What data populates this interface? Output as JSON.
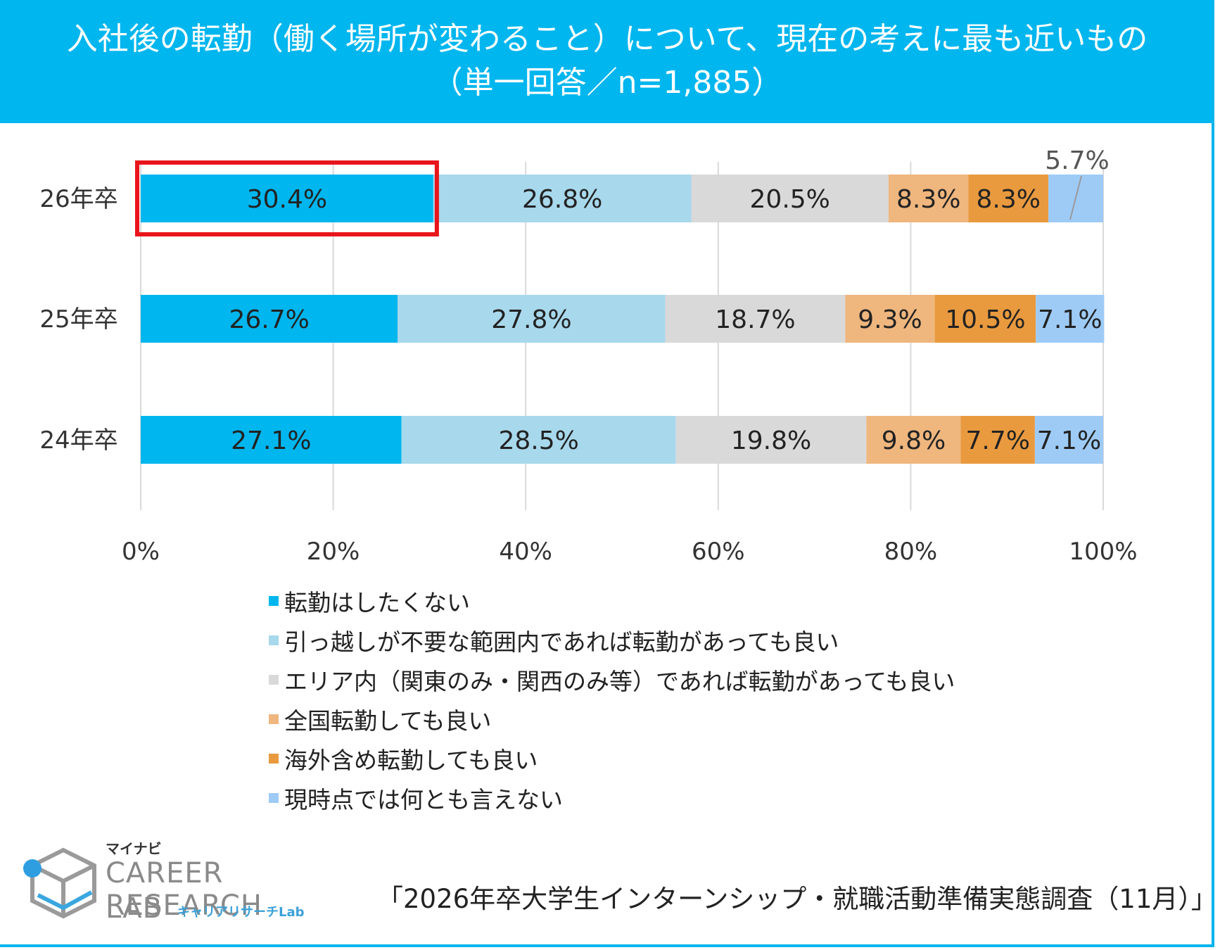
{
  "header": {
    "title_line1": "入社後の転勤（働く場所が変わること）について、現在の考えに最も近いもの",
    "title_line2": "（単一回答／n=1,885）"
  },
  "colors": {
    "header_bg": "#00b6ee",
    "highlight": "#e8151b",
    "grid": "#d9d9d9"
  },
  "chart_data": {
    "type": "bar",
    "orientation": "horizontal-stacked-100",
    "categories": [
      "26年卒",
      "25年卒",
      "24年卒"
    ],
    "series": [
      {
        "name": "転勤はしたくない",
        "color": "#00b6ee",
        "values": [
          30.4,
          26.7,
          27.1
        ],
        "labels": [
          "30.4%",
          "26.7%",
          "27.1%"
        ]
      },
      {
        "name": "引っ越しが不要な範囲内であれば転勤があっても良い",
        "color": "#a8d8ec",
        "values": [
          26.8,
          27.8,
          28.5
        ],
        "labels": [
          "26.8%",
          "27.8%",
          "28.5%"
        ]
      },
      {
        "name": "エリア内（関東のみ・関西のみ等）であれば転勤があっても良い",
        "color": "#d9d9d9",
        "values": [
          20.5,
          18.7,
          19.8
        ],
        "labels": [
          "20.5%",
          "18.7%",
          "19.8%"
        ]
      },
      {
        "name": "全国転勤しても良い",
        "color": "#efb67e",
        "values": [
          8.3,
          9.3,
          9.8
        ],
        "labels": [
          "8.3%",
          "9.3%",
          "9.8%"
        ]
      },
      {
        "name": "海外含め転勤しても良い",
        "color": "#e99a3f",
        "values": [
          8.3,
          10.5,
          7.7
        ],
        "labels": [
          "8.3%",
          "10.5%",
          "7.7%"
        ]
      },
      {
        "name": "現時点では何とも言えない",
        "color": "#9ecbf6",
        "values": [
          5.7,
          7.1,
          7.1
        ],
        "labels": [
          "5.7%",
          "7.1%",
          "7.1%"
        ]
      }
    ],
    "xlim": [
      0,
      100
    ],
    "x_ticks": [
      "0%",
      "20%",
      "40%",
      "60%",
      "80%",
      "100%"
    ],
    "grid": true,
    "legend_position": "bottom",
    "highlight": {
      "category": "26年卒",
      "series": "転勤はしたくない"
    },
    "callout": {
      "category": "26年卒",
      "series": "現時点では何とも言えない",
      "label": "5.7%"
    }
  },
  "logo": {
    "brand": "マイナビ",
    "main_line1": "CAREER RESEARCH",
    "main_line2": "LAB",
    "sub": "キャリアリサーチLab"
  },
  "source": "「2026年卒大学生インターンシップ・就職活動準備実態調査（11月）」"
}
